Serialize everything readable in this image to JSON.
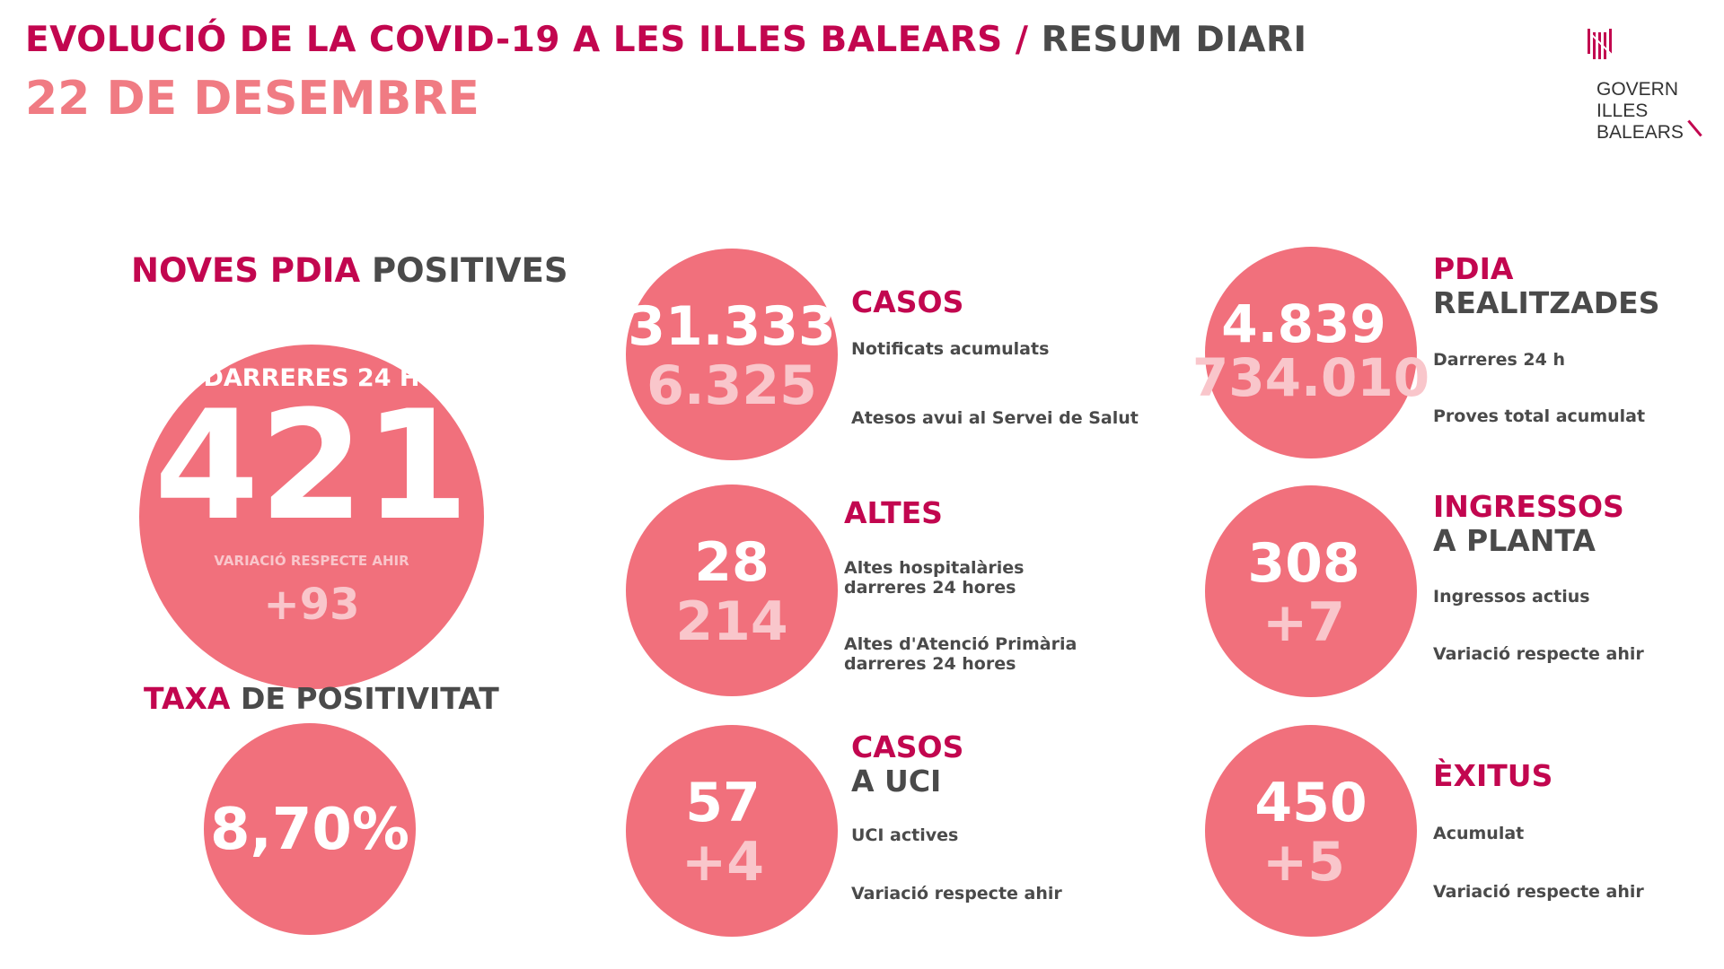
{
  "header": {
    "title_main": "EVOLUCIÓ DE LA COVID-19 A LES ILLES BALEARS",
    "title_sep": " / ",
    "title_sub": "RESUM DIARI",
    "date": "22 DE DESEMBRE"
  },
  "logo": {
    "line1": "GOVERN",
    "line2": "ILLES",
    "line3": "BALEARS"
  },
  "pdia_positives": {
    "title_a": "NOVES PDIA",
    "title_b": " POSITIVES",
    "label": "DARRERES 24 H",
    "value": "421",
    "variation_label": "VARIACIÓ RESPECTE AHIR",
    "variation": "+93"
  },
  "positivity": {
    "title_a": "TAXA",
    "title_b": " DE POSITIVITAT",
    "value": "8,70%"
  },
  "casos": {
    "title": "CASOS",
    "value1": "31.333",
    "value2": "6.325",
    "desc1": "Notificats acumulats",
    "desc2": "Atesos avui al Servei de Salut"
  },
  "altes": {
    "title": "ALTES",
    "value1": "28",
    "value2": "214",
    "desc1a": "Altes hospitalàries",
    "desc1b": "darreres 24 hores",
    "desc2a": "Altes d'Atenció Primària",
    "desc2b": "darreres 24 hores"
  },
  "uci": {
    "title_a": "CASOS",
    "title_b": "A UCI",
    "value1": "57",
    "value2": "+4",
    "desc1": "UCI actives",
    "desc2": "Variació respecte ahir"
  },
  "pdia_realitzades": {
    "title_a": "PDIA",
    "title_b": "REALITZADES",
    "value1": "4.839",
    "value2": "734.010",
    "desc1": "Darreres 24 h",
    "desc2": "Proves total acumulat"
  },
  "ingressos": {
    "title_a": "INGRESSOS",
    "title_b": "A PLANTA",
    "value1": "308",
    "value2": "+7",
    "desc1": "Ingressos actius",
    "desc2": "Variació respecte ahir"
  },
  "exitus": {
    "title": "ÈXITUS",
    "value1": "450",
    "value2": "+5",
    "desc1": "Acumulat",
    "desc2": "Variació respecte ahir"
  },
  "colors": {
    "accent": "#c2064f",
    "circle": "#f1707c",
    "date": "#f07b83",
    "secondary_number": "#f9c6cb",
    "text": "#4a4a4a"
  }
}
